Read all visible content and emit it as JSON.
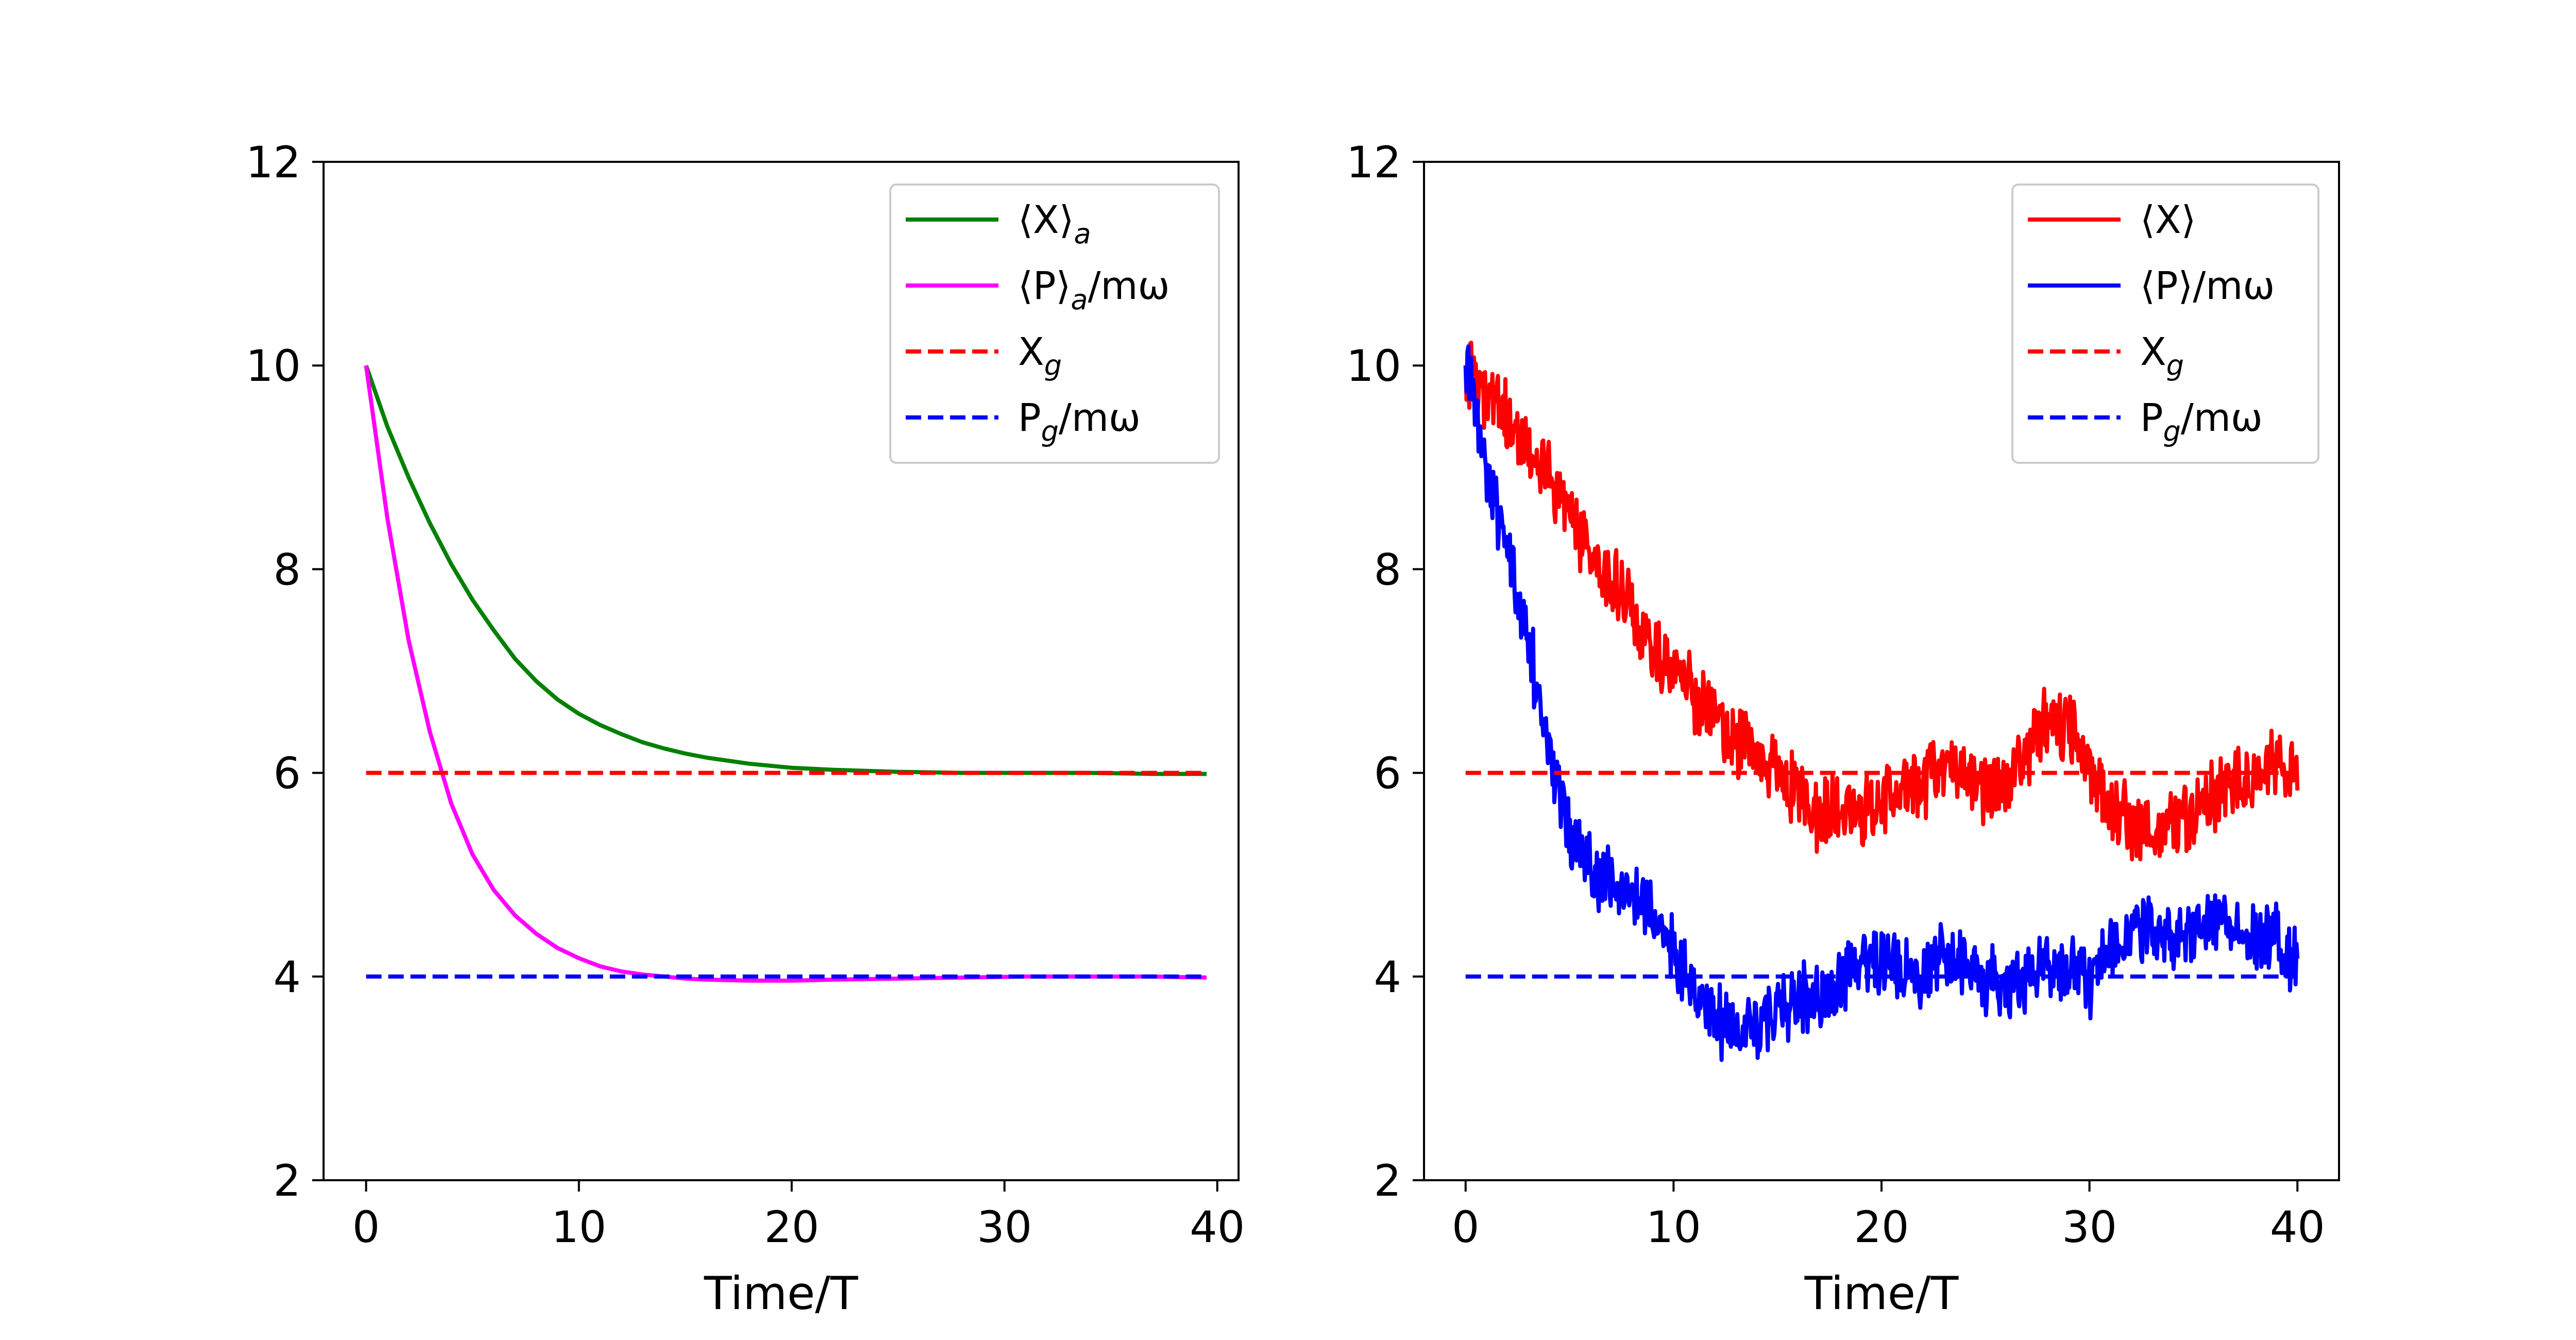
{
  "chart_data": [
    {
      "type": "line",
      "title": "",
      "xlabel": "Time/T",
      "ylabel": "",
      "xlim": [
        -2,
        41
      ],
      "ylim": [
        2,
        12
      ],
      "xticks": [
        0,
        10,
        20,
        30,
        40
      ],
      "yticks": [
        2,
        4,
        6,
        8,
        10,
        12
      ],
      "legend_position": "top-right",
      "series": [
        {
          "name": "X_a",
          "label_parts": [
            "⟨X⟩",
            "a",
            ""
          ],
          "color": "#008000",
          "style": "solid",
          "x": [
            0,
            1,
            2,
            3,
            4,
            5,
            6,
            7,
            8,
            9,
            10,
            11,
            12,
            13,
            14,
            15,
            16,
            18,
            20,
            22,
            25,
            28,
            31,
            34,
            37,
            39.5
          ],
          "y": [
            10.0,
            9.4,
            8.9,
            8.45,
            8.05,
            7.7,
            7.4,
            7.12,
            6.9,
            6.72,
            6.58,
            6.47,
            6.38,
            6.3,
            6.24,
            6.19,
            6.15,
            6.09,
            6.05,
            6.03,
            6.01,
            6.0,
            6.0,
            6.0,
            5.99,
            5.99
          ]
        },
        {
          "name": "P_a",
          "label_parts": [
            "⟨P⟩",
            "a",
            "/mω"
          ],
          "color": "#ff00ff",
          "style": "solid",
          "x": [
            0,
            1,
            2,
            3,
            4,
            5,
            6,
            7,
            8,
            9,
            10,
            11,
            12,
            13,
            14,
            15,
            16,
            18,
            20,
            22,
            25,
            28,
            31,
            34,
            37,
            39.5
          ],
          "y": [
            10.0,
            8.5,
            7.3,
            6.4,
            5.7,
            5.2,
            4.85,
            4.6,
            4.42,
            4.28,
            4.18,
            4.1,
            4.05,
            4.02,
            4.0,
            3.98,
            3.97,
            3.96,
            3.96,
            3.97,
            3.98,
            3.99,
            4.0,
            4.0,
            4.0,
            3.99
          ]
        },
        {
          "name": "X_g",
          "label_parts": [
            "X",
            "g",
            ""
          ],
          "color": "#ff0000",
          "style": "dashed",
          "x": [
            0,
            39.5
          ],
          "y": [
            6,
            6
          ]
        },
        {
          "name": "P_g",
          "label_parts": [
            "P",
            "g",
            "/mω"
          ],
          "color": "#0000ff",
          "style": "dashed",
          "x": [
            0,
            39.5
          ],
          "y": [
            4,
            4
          ]
        }
      ]
    },
    {
      "type": "line",
      "title": "",
      "xlabel": "Time/T",
      "ylabel": "",
      "xlim": [
        -2,
        42
      ],
      "ylim": [
        2,
        12
      ],
      "xticks": [
        0,
        10,
        20,
        30,
        40
      ],
      "yticks": [
        2,
        4,
        6,
        8,
        10,
        12
      ],
      "legend_position": "top-right",
      "series": [
        {
          "name": "X",
          "label_parts": [
            "⟨X⟩",
            "",
            ""
          ],
          "color": "#ff0000",
          "style": "solid",
          "noisy": true,
          "x": [
            0,
            1,
            2,
            3,
            4,
            5,
            6,
            7,
            8,
            9,
            10,
            11,
            12,
            13,
            14,
            15,
            16,
            17,
            18,
            19,
            20,
            21,
            22,
            23,
            24,
            25,
            26,
            27,
            28,
            29,
            30,
            31,
            32,
            33,
            34,
            35,
            36,
            37,
            38,
            39,
            40
          ],
          "y": [
            10.0,
            9.7,
            9.45,
            9.2,
            8.95,
            8.5,
            8.1,
            7.9,
            7.6,
            7.2,
            7.0,
            6.75,
            6.5,
            6.3,
            6.2,
            6.0,
            5.8,
            5.55,
            5.65,
            5.55,
            5.75,
            5.85,
            5.9,
            6.05,
            6.0,
            5.85,
            5.95,
            6.25,
            6.55,
            6.45,
            6.0,
            5.7,
            5.5,
            5.5,
            5.45,
            5.6,
            5.75,
            5.9,
            6.0,
            6.1,
            5.95
          ]
        },
        {
          "name": "P",
          "label_parts": [
            "⟨P⟩",
            "",
            "/mω"
          ],
          "color": "#0000ff",
          "style": "solid",
          "noisy": true,
          "x": [
            0,
            1,
            2,
            3,
            4,
            5,
            6,
            7,
            8,
            9,
            10,
            11,
            12,
            13,
            14,
            15,
            16,
            17,
            18,
            19,
            20,
            21,
            22,
            23,
            24,
            25,
            26,
            27,
            28,
            29,
            30,
            31,
            32,
            33,
            34,
            35,
            36,
            37,
            38,
            39,
            40
          ],
          "y": [
            10.0,
            9.0,
            8.2,
            7.3,
            6.2,
            5.4,
            5.1,
            4.9,
            4.75,
            4.6,
            4.3,
            3.9,
            3.6,
            3.4,
            3.5,
            3.65,
            3.75,
            3.85,
            4.0,
            4.1,
            4.15,
            4.1,
            4.05,
            4.2,
            4.15,
            3.95,
            3.85,
            4.05,
            4.15,
            4.05,
            3.95,
            4.25,
            4.45,
            4.5,
            4.4,
            4.5,
            4.55,
            4.5,
            4.35,
            4.4,
            4.1
          ]
        },
        {
          "name": "X_g",
          "label_parts": [
            "X",
            "g",
            ""
          ],
          "color": "#ff0000",
          "style": "dashed",
          "x": [
            0,
            40
          ],
          "y": [
            6,
            6
          ]
        },
        {
          "name": "P_g",
          "label_parts": [
            "P",
            "g",
            "/mω"
          ],
          "color": "#0000ff",
          "style": "dashed",
          "x": [
            0,
            40
          ],
          "y": [
            4,
            4
          ]
        }
      ]
    }
  ]
}
